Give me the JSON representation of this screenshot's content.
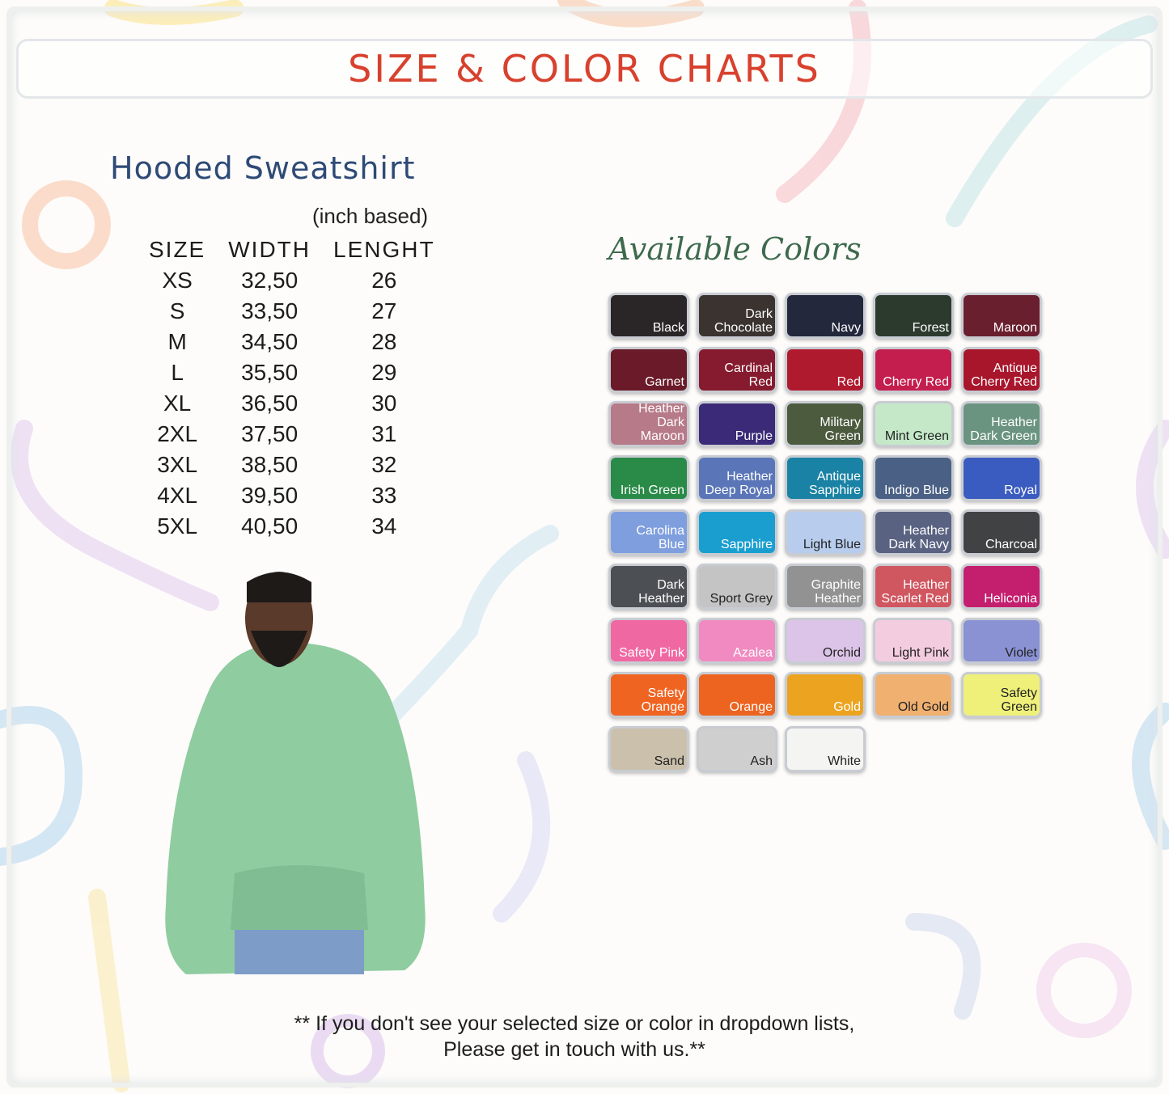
{
  "header": {
    "title": "SIZE & COLOR CHARTS"
  },
  "product": {
    "name": "Hooded Sweatshirt",
    "unit_note": "(inch based)"
  },
  "size_table": {
    "columns": [
      "SIZE",
      "WIDTH",
      "LENGHT"
    ],
    "rows": [
      [
        "XS",
        "32,50",
        "26"
      ],
      [
        "S",
        "33,50",
        "27"
      ],
      [
        "M",
        "34,50",
        "28"
      ],
      [
        "L",
        "35,50",
        "29"
      ],
      [
        "XL",
        "36,50",
        "30"
      ],
      [
        "2XL",
        "37,50",
        "31"
      ],
      [
        "3XL",
        "38,50",
        "32"
      ],
      [
        "4XL",
        "39,50",
        "33"
      ],
      [
        "5XL",
        "40,50",
        "34"
      ]
    ]
  },
  "colors": {
    "heading": "Available Colors",
    "swatches": [
      {
        "label": "Black",
        "color": "#2a2628",
        "text": "light"
      },
      {
        "label": "Dark Chocolate",
        "color": "#3a3330",
        "text": "light"
      },
      {
        "label": "Navy",
        "color": "#23283d",
        "text": "light"
      },
      {
        "label": "Forest",
        "color": "#2c3a2e",
        "text": "light"
      },
      {
        "label": "Maroon",
        "color": "#6a1f2e",
        "text": "light"
      },
      {
        "label": "Garnet",
        "color": "#6a1a28",
        "text": "light"
      },
      {
        "label": "Cardinal Red",
        "color": "#861a2e",
        "text": "light"
      },
      {
        "label": "Red",
        "color": "#b01a2e",
        "text": "light"
      },
      {
        "label": "Cherry Red",
        "color": "#c41e4e",
        "text": "light"
      },
      {
        "label": "Antique Cherry Red",
        "color": "#a8162c",
        "text": "light"
      },
      {
        "label": "Heather Dark Maroon",
        "color": "#b77a88",
        "text": "light"
      },
      {
        "label": "Purple",
        "color": "#3a2a78",
        "text": "light"
      },
      {
        "label": "Military Green",
        "color": "#4c5a3e",
        "text": "light"
      },
      {
        "label": "Mint Green",
        "color": "#c4e8c8",
        "text": "dark"
      },
      {
        "label": "Heather Dark Green",
        "color": "#6a9480",
        "text": "light"
      },
      {
        "label": "Irish Green",
        "color": "#2a8a48",
        "text": "light"
      },
      {
        "label": "Heather Deep Royal",
        "color": "#5a76b8",
        "text": "light"
      },
      {
        "label": "Antique Sapphire",
        "color": "#1a82a4",
        "text": "light"
      },
      {
        "label": "Indigo Blue",
        "color": "#4a6084",
        "text": "light"
      },
      {
        "label": "Royal",
        "color": "#3a5cc0",
        "text": "light"
      },
      {
        "label": "Carolina Blue",
        "color": "#7e9ede",
        "text": "light"
      },
      {
        "label": "Sapphire",
        "color": "#1a9ed0",
        "text": "light"
      },
      {
        "label": "Light Blue",
        "color": "#b8cdee",
        "text": "dark"
      },
      {
        "label": "Heather Dark Navy",
        "color": "#5a6282",
        "text": "light"
      },
      {
        "label": "Charcoal",
        "color": "#404244",
        "text": "light"
      },
      {
        "label": "Dark Heather",
        "color": "#4c5054",
        "text": "light"
      },
      {
        "label": "Sport Grey",
        "color": "#c4c4c4",
        "text": "dark"
      },
      {
        "label": "Graphite Heather",
        "color": "#929292",
        "text": "light"
      },
      {
        "label": "Heather Scarlet Red",
        "color": "#d05660",
        "text": "light"
      },
      {
        "label": "Heliconia",
        "color": "#c41e6e",
        "text": "light"
      },
      {
        "label": "Safety Pink",
        "color": "#f068a2",
        "text": "light"
      },
      {
        "label": "Azalea",
        "color": "#f08ac0",
        "text": "light"
      },
      {
        "label": "Orchid",
        "color": "#dcc4e8",
        "text": "dark"
      },
      {
        "label": "Light Pink",
        "color": "#f4cce0",
        "text": "dark"
      },
      {
        "label": "Violet",
        "color": "#8a92d4",
        "text": "dark"
      },
      {
        "label": "Safety Orange",
        "color": "#f06422",
        "text": "light"
      },
      {
        "label": "Orange",
        "color": "#ec6420",
        "text": "light"
      },
      {
        "label": "Gold",
        "color": "#eca420",
        "text": "light"
      },
      {
        "label": "Old Gold",
        "color": "#f0b070",
        "text": "dark"
      },
      {
        "label": "Safety Green",
        "color": "#eef07a",
        "text": "dark"
      },
      {
        "label": "Sand",
        "color": "#cac0ac",
        "text": "dark"
      },
      {
        "label": "Ash",
        "color": "#cfcfcf",
        "text": "dark"
      },
      {
        "label": "White",
        "color": "#f4f4f2",
        "text": "dark"
      }
    ]
  },
  "footer": {
    "line1": "** If you don't see your selected size or color in dropdown lists,",
    "line2": "Please get in touch with us.**"
  }
}
